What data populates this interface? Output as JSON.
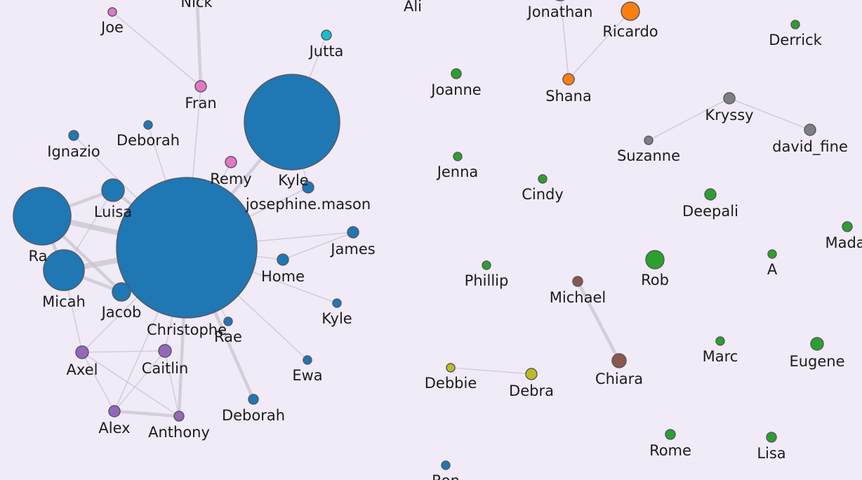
{
  "graph": {
    "colors": {
      "background": "#f1ebf7",
      "edge": "#c9c4cf",
      "node_stroke": "#555a66",
      "blue": "#1f77b4",
      "green": "#2ca02c",
      "orange": "#ff7f0e",
      "pink": "#e377c2",
      "purple": "#9467bd",
      "gray": "#7f7f7f",
      "brown": "#8c564b",
      "olive": "#bcbd22",
      "cyan": "#17becf"
    },
    "nodes": [
      {
        "id": "christophe",
        "label": "Christophe",
        "group": "blue"
      },
      {
        "id": "kyle_big",
        "label": "Kyle",
        "group": "blue"
      },
      {
        "id": "ra",
        "label": "Ra",
        "group": "blue"
      },
      {
        "id": "micah",
        "label": "Micah",
        "group": "blue"
      },
      {
        "id": "luisa",
        "label": "Luisa",
        "group": "blue"
      },
      {
        "id": "jacob",
        "label": "Jacob",
        "group": "blue"
      },
      {
        "id": "ignazio",
        "label": "Ignazio",
        "group": "blue"
      },
      {
        "id": "deborah_top",
        "label": "Deborah",
        "group": "blue"
      },
      {
        "id": "josephine",
        "label": "josephine.mason",
        "group": "blue"
      },
      {
        "id": "james",
        "label": "James",
        "group": "blue"
      },
      {
        "id": "home",
        "label": "Home",
        "group": "blue"
      },
      {
        "id": "kyle_small",
        "label": "Kyle",
        "group": "blue"
      },
      {
        "id": "rae",
        "label": "Rae",
        "group": "blue"
      },
      {
        "id": "ewa",
        "label": "Ewa",
        "group": "blue"
      },
      {
        "id": "deborah_bottom",
        "label": "Deborah",
        "group": "blue"
      },
      {
        "id": "ron",
        "label": "Ron",
        "group": "blue"
      },
      {
        "id": "joe",
        "label": "Joe",
        "group": "pink"
      },
      {
        "id": "nick",
        "label": "Nick",
        "group": "pink"
      },
      {
        "id": "fran",
        "label": "Fran",
        "group": "pink"
      },
      {
        "id": "remy",
        "label": "Remy",
        "group": "pink"
      },
      {
        "id": "jutta",
        "label": "Jutta",
        "group": "cyan"
      },
      {
        "id": "axel",
        "label": "Axel",
        "group": "purple"
      },
      {
        "id": "caitlin",
        "label": "Caitlin",
        "group": "purple"
      },
      {
        "id": "alex",
        "label": "Alex",
        "group": "purple"
      },
      {
        "id": "anthony",
        "label": "Anthony",
        "group": "purple"
      },
      {
        "id": "ali",
        "label": "Ali",
        "group": "green"
      },
      {
        "id": "jonathan",
        "label": "Jonathan",
        "group": "orange"
      },
      {
        "id": "ricardo",
        "label": "Ricardo",
        "group": "orange"
      },
      {
        "id": "shana",
        "label": "Shana",
        "group": "orange"
      },
      {
        "id": "derrick",
        "label": "Derrick",
        "group": "green"
      },
      {
        "id": "joanne",
        "label": "Joanne",
        "group": "green"
      },
      {
        "id": "kryssy",
        "label": "Kryssy",
        "group": "gray"
      },
      {
        "id": "suzanne",
        "label": "Suzanne",
        "group": "gray"
      },
      {
        "id": "david_fine",
        "label": "david_fine",
        "group": "gray"
      },
      {
        "id": "jenna",
        "label": "Jenna",
        "group": "green"
      },
      {
        "id": "cindy",
        "label": "Cindy",
        "group": "green"
      },
      {
        "id": "deepali",
        "label": "Deepali",
        "group": "green"
      },
      {
        "id": "madal",
        "label": "Madal",
        "group": "green"
      },
      {
        "id": "a",
        "label": "A",
        "group": "green"
      },
      {
        "id": "phillip",
        "label": "Phillip",
        "group": "green"
      },
      {
        "id": "rob",
        "label": "Rob",
        "group": "green"
      },
      {
        "id": "michael",
        "label": "Michael",
        "group": "brown"
      },
      {
        "id": "chiara",
        "label": "Chiara",
        "group": "brown"
      },
      {
        "id": "marc",
        "label": "Marc",
        "group": "green"
      },
      {
        "id": "eugene",
        "label": "Eugene",
        "group": "green"
      },
      {
        "id": "debbie",
        "label": "Debbie",
        "group": "olive"
      },
      {
        "id": "debra",
        "label": "Debra",
        "group": "olive"
      },
      {
        "id": "rome",
        "label": "Rome",
        "group": "green"
      },
      {
        "id": "lisa",
        "label": "Lisa",
        "group": "green"
      }
    ],
    "edges": [
      {
        "source": "christophe",
        "target": "ra",
        "weight": 3
      },
      {
        "source": "christophe",
        "target": "micah",
        "weight": 3
      },
      {
        "source": "christophe",
        "target": "luisa",
        "weight": 2
      },
      {
        "source": "christophe",
        "target": "jacob",
        "weight": 2
      },
      {
        "source": "christophe",
        "target": "kyle_big",
        "weight": 2
      },
      {
        "source": "christophe",
        "target": "fran",
        "weight": 1
      },
      {
        "source": "christophe",
        "target": "remy",
        "weight": 1
      },
      {
        "source": "christophe",
        "target": "deborah_top",
        "weight": 1
      },
      {
        "source": "christophe",
        "target": "ignazio",
        "weight": 1
      },
      {
        "source": "christophe",
        "target": "josephine",
        "weight": 1
      },
      {
        "source": "christophe",
        "target": "james",
        "weight": 1
      },
      {
        "source": "christophe",
        "target": "home",
        "weight": 1
      },
      {
        "source": "christophe",
        "target": "kyle_small",
        "weight": 1
      },
      {
        "source": "christophe",
        "target": "rae",
        "weight": 1
      },
      {
        "source": "christophe",
        "target": "ewa",
        "weight": 1
      },
      {
        "source": "christophe",
        "target": "deborah_bottom",
        "weight": 2
      },
      {
        "source": "christophe",
        "target": "axel",
        "weight": 1
      },
      {
        "source": "christophe",
        "target": "caitlin",
        "weight": 1
      },
      {
        "source": "christophe",
        "target": "alex",
        "weight": 1
      },
      {
        "source": "christophe",
        "target": "anthony",
        "weight": 2
      },
      {
        "source": "ra",
        "target": "micah",
        "weight": 2
      },
      {
        "source": "ra",
        "target": "luisa",
        "weight": 2
      },
      {
        "source": "ra",
        "target": "jacob",
        "weight": 2
      },
      {
        "source": "micah",
        "target": "jacob",
        "weight": 2
      },
      {
        "source": "micah",
        "target": "luisa",
        "weight": 1
      },
      {
        "source": "micah",
        "target": "axel",
        "weight": 1
      },
      {
        "source": "joe",
        "target": "fran",
        "weight": 1
      },
      {
        "source": "nick",
        "target": "fran",
        "weight": 2
      },
      {
        "source": "jutta",
        "target": "kyle_big",
        "weight": 1
      },
      {
        "source": "kyle_big",
        "target": "josephine",
        "weight": 1
      },
      {
        "source": "home",
        "target": "james",
        "weight": 1
      },
      {
        "source": "axel",
        "target": "caitlin",
        "weight": 1
      },
      {
        "source": "axel",
        "target": "anthony",
        "weight": 1
      },
      {
        "source": "axel",
        "target": "alex",
        "weight": 1
      },
      {
        "source": "alex",
        "target": "caitlin",
        "weight": 1
      },
      {
        "source": "alex",
        "target": "anthony",
        "weight": 2
      },
      {
        "source": "caitlin",
        "target": "anthony",
        "weight": 1
      },
      {
        "source": "jonathan",
        "target": "shana",
        "weight": 1
      },
      {
        "source": "ricardo",
        "target": "shana",
        "weight": 1
      },
      {
        "source": "kryssy",
        "target": "suzanne",
        "weight": 1
      },
      {
        "source": "kryssy",
        "target": "david_fine",
        "weight": 1
      },
      {
        "source": "michael",
        "target": "chiara",
        "weight": 2
      },
      {
        "source": "debbie",
        "target": "debra",
        "weight": 1
      }
    ]
  }
}
